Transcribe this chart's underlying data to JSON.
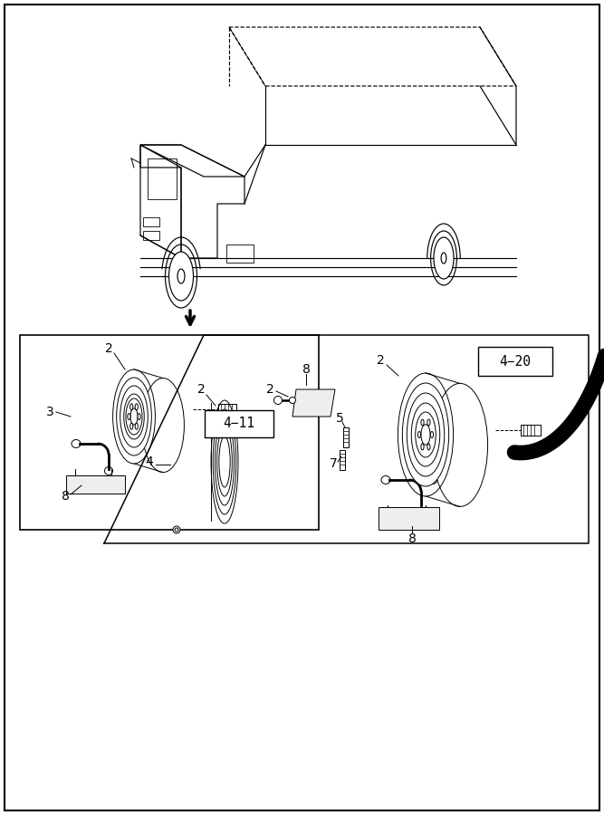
{
  "bg_color": "#ffffff",
  "line_color": "#000000",
  "fig_width": 6.67,
  "fig_height": 9.0
}
